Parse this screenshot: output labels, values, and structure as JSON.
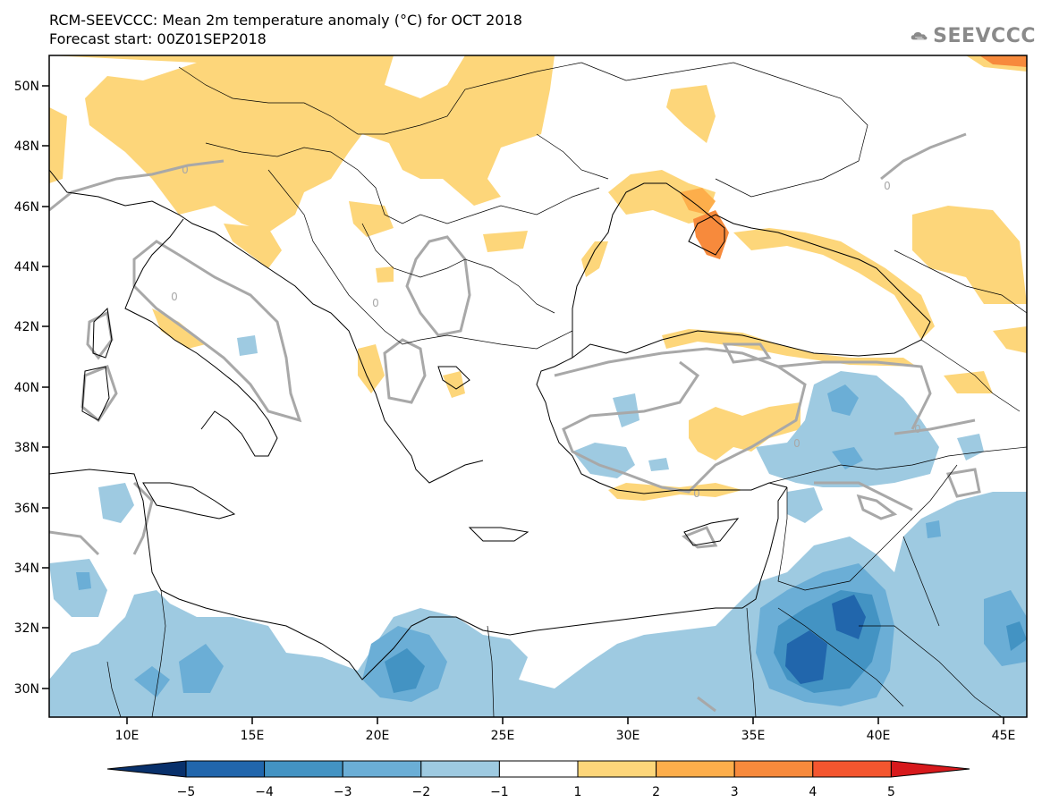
{
  "header": {
    "title_line1": "RCM-SEEVCCC: Mean 2m temperature anomaly (°C) for OCT 2018",
    "title_line2": "Forecast start: 00Z01SEP2018"
  },
  "logo": {
    "text": "SEEVCCC",
    "icon": "cloud-icon"
  },
  "map": {
    "lon_ticks": [
      "10E",
      "15E",
      "20E",
      "25E",
      "30E",
      "35E",
      "40E",
      "45E"
    ],
    "lat_ticks": [
      "50N",
      "48N",
      "46N",
      "44N",
      "42N",
      "40N",
      "38N",
      "36N",
      "34N",
      "32N",
      "30N"
    ],
    "contour_label": "0"
  },
  "colorbar": {
    "labels": [
      "−5",
      "−4",
      "−3",
      "−2",
      "−1",
      "1",
      "2",
      "3",
      "4",
      "5"
    ],
    "colors": [
      "#08306b",
      "#2166ac",
      "#4393c3",
      "#6baed6",
      "#9ecae1",
      "#ffffff",
      "#fdd67a",
      "#fdae4b",
      "#f78a3c",
      "#f4562f",
      "#d7191c"
    ]
  },
  "palette": {
    "anomaly_pos1": "#fdd67a",
    "anomaly_pos2": "#fdae4b",
    "anomaly_pos3": "#f78a3c",
    "anomaly_neg1": "#9ecae1",
    "anomaly_neg2": "#6baed6",
    "anomaly_neg3": "#4393c3",
    "anomaly_neg4": "#2166ac",
    "zero_contour": "#a8a8a8",
    "coastline": "#000000"
  }
}
